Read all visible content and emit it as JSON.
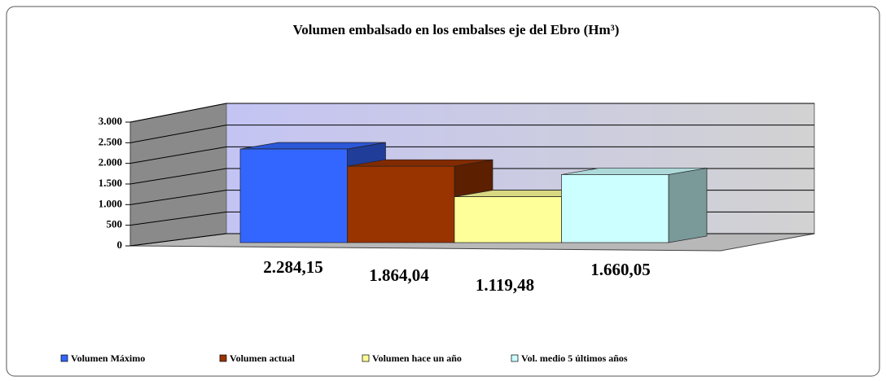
{
  "chart_data": {
    "type": "bar3d",
    "title": "Volumen embalsado en los embalses eje del Ebro (Hm³)",
    "series": [
      {
        "name": "Volumen Máximo",
        "color": "#3366ff",
        "values": [
          2284.15
        ],
        "value_labels": [
          "2.284,15"
        ]
      },
      {
        "name": "Volumen actual",
        "color": "#993300",
        "values": [
          1864.04
        ],
        "value_labels": [
          "1.864,04"
        ]
      },
      {
        "name": "Volumen hace un año",
        "color": "#ffff99",
        "values": [
          1119.48
        ],
        "value_labels": [
          "1.119,48"
        ]
      },
      {
        "name": "Vol. medio 5 últimos años",
        "color": "#ccffff",
        "values": [
          1660.05
        ],
        "value_labels": [
          "1.660,05"
        ]
      }
    ],
    "ylim": [
      0,
      3000
    ],
    "yticks": [
      0,
      500,
      {
        "value": 1000,
        "label": "1.000"
      },
      {
        "value": 1500,
        "label": "1.500"
      },
      {
        "value": 2000,
        "label": "2.000"
      },
      {
        "value": 2500,
        "label": "2.500"
      },
      {
        "value": 3000,
        "label": "3.000"
      }
    ],
    "grid": true,
    "legend": "bottom"
  }
}
